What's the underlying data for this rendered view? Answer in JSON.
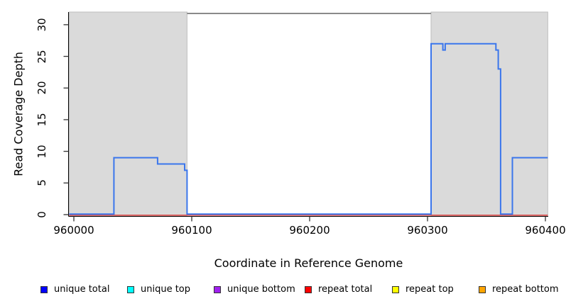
{
  "figure": {
    "background": "#FFFFFF"
  },
  "chart_data": {
    "type": "line",
    "subtype": "step-coverage",
    "title": "",
    "xlabel": "Coordinate in Reference Genome",
    "ylabel": "Read Coverage Depth",
    "xlim": [
      959996,
      960402
    ],
    "ylim": [
      0,
      32
    ],
    "xticks": [
      960000,
      960100,
      960200,
      960300,
      960400
    ],
    "yticks": [
      0,
      5,
      10,
      15,
      20,
      25,
      30
    ],
    "grid": false,
    "legend_position": "bottom",
    "repeat_regions": [
      {
        "start": 959996,
        "end": 960096
      },
      {
        "start": 960303,
        "end": 960402
      }
    ],
    "cap_line": {
      "value": 32,
      "start": 960096,
      "end": 960303
    },
    "series": [
      {
        "name": "coverage-step",
        "legend": "unique total",
        "vertices": [
          [
            959996,
            0
          ],
          [
            960034,
            0
          ],
          [
            960034,
            9
          ],
          [
            960071,
            9
          ],
          [
            960071,
            8
          ],
          [
            960094,
            8
          ],
          [
            960094,
            7
          ],
          [
            960096,
            7
          ],
          [
            960096,
            0
          ],
          [
            960303,
            0
          ],
          [
            960303,
            27
          ],
          [
            960313,
            27
          ],
          [
            960313,
            26
          ],
          [
            960315,
            26
          ],
          [
            960315,
            27
          ],
          [
            960358,
            27
          ],
          [
            960358,
            26
          ],
          [
            960360,
            26
          ],
          [
            960360,
            23
          ],
          [
            960362,
            23
          ],
          [
            960362,
            0
          ],
          [
            960372,
            0
          ],
          [
            960372,
            9
          ],
          [
            960402,
            9
          ]
        ]
      },
      {
        "name": "zero-baseline",
        "legend": "repeat total",
        "vertices": [
          [
            959996,
            0
          ],
          [
            960402,
            0
          ]
        ]
      }
    ],
    "legend": [
      {
        "label": "unique total",
        "color": "#0000FF"
      },
      {
        "label": "unique top",
        "color": "#00FFFF"
      },
      {
        "label": "unique bottom",
        "color": "#A020F0"
      },
      {
        "label": "repeat total",
        "color": "#FF0000"
      },
      {
        "label": "repeat top",
        "color": "#FFFF00"
      },
      {
        "label": "repeat bottom",
        "color": "#FFA500"
      }
    ],
    "colors": {
      "step_line": "#3B76EC",
      "baseline": "#E0504E",
      "region_fill": "#DADADA",
      "region_border": "#BDBDBD",
      "cap_line": "#8A8A8A",
      "axis": "#000000",
      "tick": "#333333"
    }
  }
}
